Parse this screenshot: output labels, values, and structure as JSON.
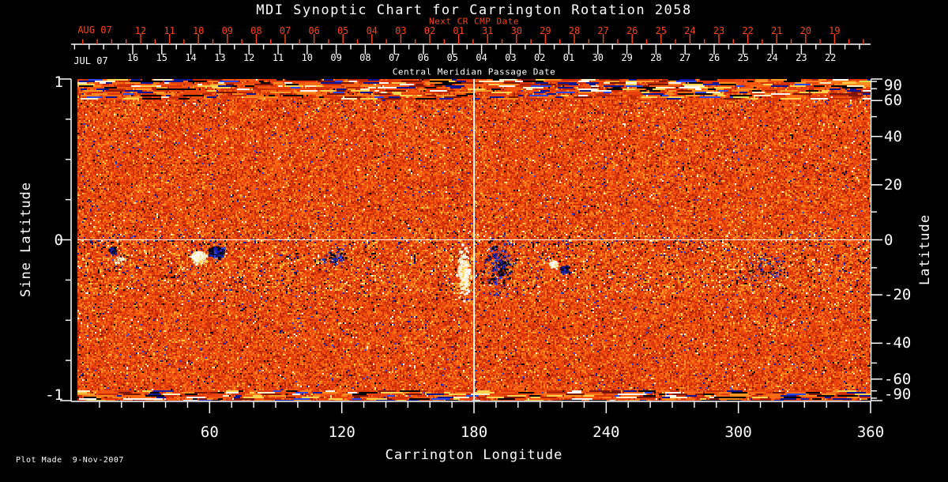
{
  "colors": {
    "background": "#000000",
    "text": "#FFFFFF",
    "accent_red": "#FB4414",
    "crosshair": "#FFFFFF"
  },
  "chart_data": {
    "type": "heatmap",
    "title": "MDI Synoptic Chart for Carrington Rotation 2058",
    "footer": "Plot Made  9-Nov-2007",
    "xlabel": "Carrington Longitude",
    "x_range": [
      0,
      360
    ],
    "y_range_sine_latitude": [
      -1,
      1
    ],
    "top_next_cr": {
      "name": "Next CR CMP Date",
      "month": "AUG 07",
      "days": [
        "12",
        "11",
        "10",
        "09",
        "08",
        "07",
        "06",
        "05",
        "04",
        "03",
        "02",
        "01",
        "31",
        "30",
        "29",
        "28",
        "27",
        "26",
        "25",
        "24",
        "23",
        "22",
        "21",
        "20",
        "19"
      ]
    },
    "top_cmp": {
      "name": "Central Meridian Passage Date",
      "month": "JUL 07",
      "days": [
        "16",
        "15",
        "14",
        "13",
        "12",
        "11",
        "10",
        "09",
        "08",
        "07",
        "06",
        "05",
        "04",
        "03",
        "02",
        "01",
        "30",
        "29",
        "28",
        "27",
        "26",
        "25",
        "24",
        "23",
        "22"
      ]
    },
    "left_axis": {
      "label": "Sine Latitude",
      "ticks": [
        1,
        0,
        -1
      ],
      "tick_labels": [
        "1",
        "0",
        "-1"
      ],
      "minor_ticks": [
        0.75,
        0.5,
        0.25,
        -0.25,
        -0.5,
        -0.75
      ]
    },
    "right_axis": {
      "label": "Latitude",
      "ticks": [
        90,
        60,
        40,
        20,
        0,
        -20,
        -40,
        -60,
        -90
      ],
      "tick_labels": [
        "90",
        "60",
        "40",
        "20",
        "0",
        "-20",
        "-40",
        "-60",
        "-90"
      ],
      "minor_ticks": [
        80,
        70,
        50,
        30,
        10,
        -10,
        -30,
        -50,
        -70,
        -80
      ]
    },
    "bottom_axis": {
      "label": "Carrington Longitude",
      "ticks": [
        60,
        120,
        180,
        240,
        300,
        360
      ],
      "tick_labels": [
        "60",
        "120",
        "180",
        "240",
        "300",
        "360"
      ],
      "minor_tick_step_deg": 10
    },
    "crosshair": {
      "longitude": 180,
      "sine_latitude": 0
    },
    "background_field": {
      "description": "noisy orange/red photospheric magnetogram with scattered dark (negative) and bright (positive) speckles; horizontal streak artifacts near both poles; enhanced speckle activity along the low-latitude activity belt",
      "palette_main": [
        "#E8430C",
        "#F4560F",
        "#DA3507",
        "#FC6A13",
        "#C52C05",
        "#FF7F1C",
        "#B02405",
        "#F99D28",
        "#8C1A03",
        "#FFCE4E"
      ],
      "palette_extreme": [
        "#000000",
        "#161FA8",
        "#2E48E8",
        "#FFFFFF",
        "#FFEFC6",
        "#FFD34E",
        "#D8E04A"
      ]
    },
    "active_regions": [
      {
        "longitude": 16,
        "sine_latitude": -0.065,
        "polarity": "negative",
        "size": "small"
      },
      {
        "longitude": 19,
        "sine_latitude": -0.115,
        "polarity": "positive",
        "size": "small-faint"
      },
      {
        "longitude": 55,
        "sine_latitude": -0.105,
        "polarity": "positive",
        "size": "large"
      },
      {
        "longitude": 63,
        "sine_latitude": -0.075,
        "polarity": "negative",
        "size": "large"
      },
      {
        "longitude": 116,
        "sine_latitude": -0.11,
        "polarity": "negative",
        "size": "diffuse"
      },
      {
        "longitude": 175,
        "sine_latitude": -0.2,
        "polarity": "positive",
        "size": "plume"
      },
      {
        "longitude": 191,
        "sine_latitude": -0.155,
        "polarity": "negative",
        "size": "scattered"
      },
      {
        "longitude": 216,
        "sine_latitude": -0.15,
        "polarity": "positive",
        "size": "small"
      },
      {
        "longitude": 221,
        "sine_latitude": -0.18,
        "polarity": "negative",
        "size": "small"
      },
      {
        "longitude": 311,
        "sine_latitude": -0.18,
        "polarity": "negative",
        "size": "sparse"
      }
    ]
  }
}
